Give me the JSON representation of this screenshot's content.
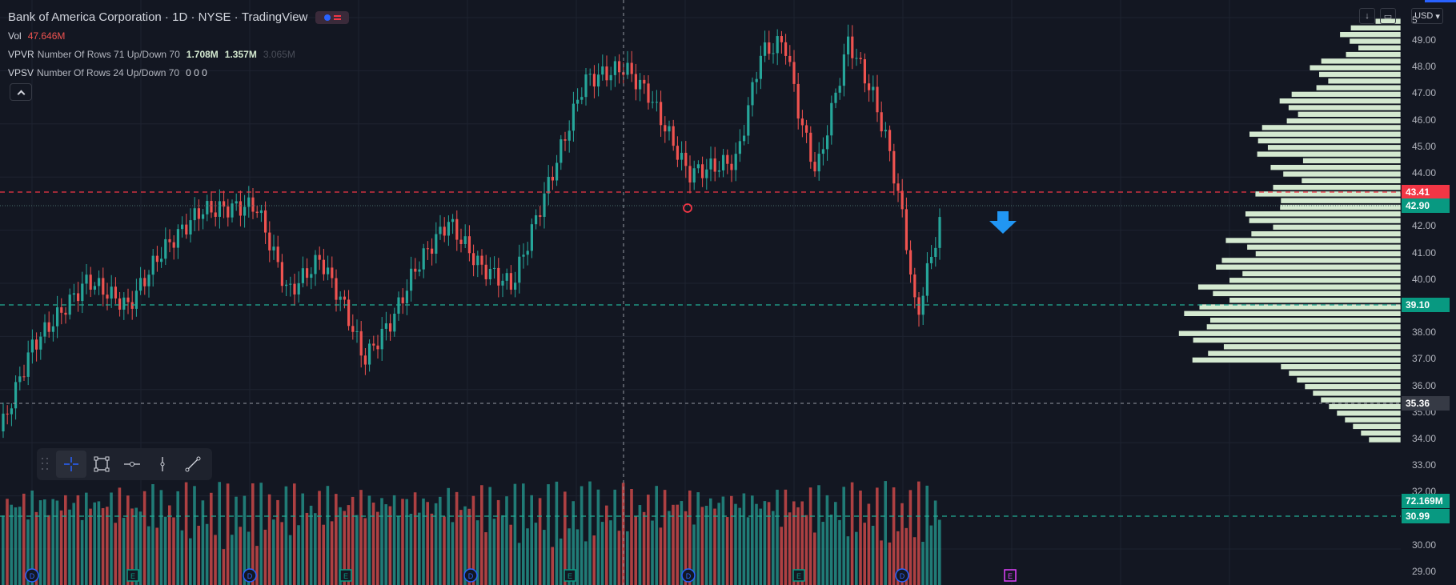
{
  "legend": {
    "symbol": "Bank of America Corporation",
    "interval": "1D",
    "exchange": "NYSE",
    "source": "TradingView",
    "vol_label": "Vol",
    "vol_value": "47.646M",
    "vpvr_name": "VPVR",
    "vpvr_params": "Number Of Rows 71 Up/Down 70",
    "vpvr_up": "1.708M",
    "vpvr_down": "1.357M",
    "vpvr_total": "3.065M",
    "vpsv_name": "VPSV",
    "vpsv_params": "Number Of Rows 24 Up/Down 70",
    "vpsv_values": "0  0  0"
  },
  "currency": "USD",
  "price_axis": {
    "ticks": [
      "49.00",
      "48.00",
      "47.00",
      "46.00",
      "45.00",
      "44.00",
      "42.00",
      "41.00",
      "40.00",
      "38.00",
      "37.00",
      "36.00",
      "35.00",
      "34.00",
      "33.00",
      "32.00",
      "30.00",
      "29.00"
    ],
    "top_label": "5"
  },
  "price_tags": [
    {
      "value": "43.41",
      "color": "#f23645"
    },
    {
      "value": "42.90",
      "color": "#089981"
    },
    {
      "value": "39.10",
      "color": "#089981"
    },
    {
      "value": "35.36",
      "color": "#363a45"
    },
    {
      "value": "72.169M",
      "color": "#089981"
    },
    {
      "value": "30.99",
      "color": "#089981"
    }
  ],
  "event_markers": [
    "D",
    "E",
    "D",
    "E",
    "D",
    "E",
    "D",
    "E",
    "D",
    "E"
  ],
  "colors": {
    "up": "#26a69a",
    "down": "#ef5350",
    "background": "#131722",
    "grid": "#1e2330",
    "profile": "#d4e9d0",
    "red_line": "#f23645",
    "teal_line": "#22ab94",
    "arrow": "#2196f3",
    "marker_blue": "#2962ff",
    "marker_teal": "#089981",
    "marker_magenta": "#e040fb"
  },
  "icons": [
    "theme-toggle-icon",
    "collapse-chevron-icon",
    "crosshair-icon",
    "rectangle-icon",
    "horizontal-ray-icon",
    "vertical-line-icon",
    "trend-line-icon",
    "alarm-clock-icon",
    "down-arrow-icon",
    "download-icon",
    "screenshot-icon"
  ]
}
